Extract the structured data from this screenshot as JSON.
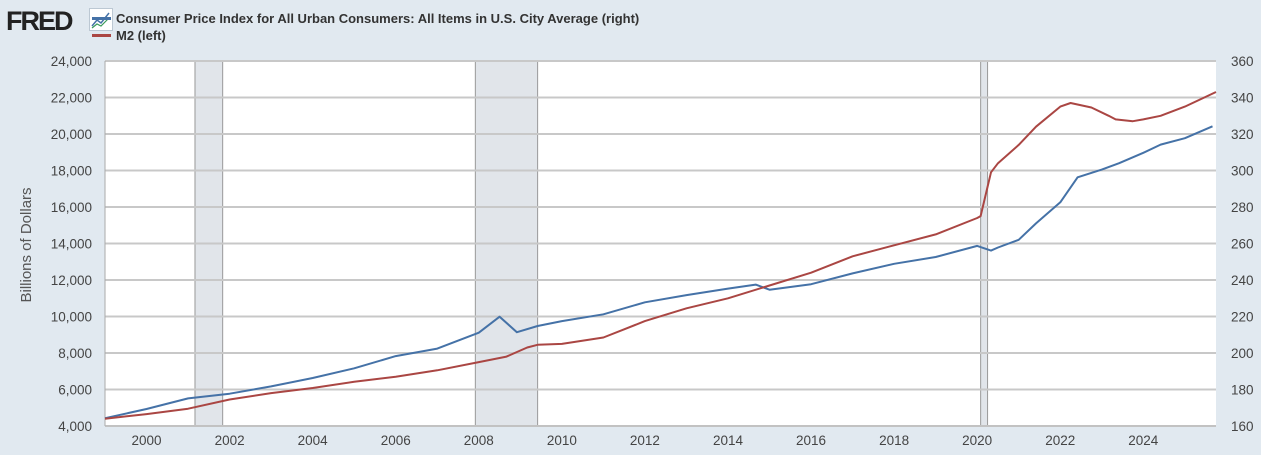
{
  "logo": "FRED",
  "chart_data": {
    "type": "line",
    "title": "",
    "ylabel_left": "Billions of Dollars",
    "ylim_left": [
      4000,
      24000
    ],
    "ylim_right": [
      160,
      360
    ],
    "xlim": [
      "1999-01",
      "2025-10"
    ],
    "yticks_left": [
      "4,000",
      "6,000",
      "8,000",
      "10,000",
      "12,000",
      "14,000",
      "16,000",
      "18,000",
      "20,000",
      "22,000",
      "24,000"
    ],
    "yticks_right": [
      "160",
      "180",
      "200",
      "220",
      "240",
      "260",
      "280",
      "300",
      "320",
      "340",
      "360"
    ],
    "xticks": [
      "2000",
      "2002",
      "2004",
      "2006",
      "2008",
      "2010",
      "2012",
      "2014",
      "2016",
      "2018",
      "2020",
      "2022",
      "2024"
    ],
    "grid": "horizontal",
    "legend_placement": "top-left",
    "recessions": [
      [
        "2001-03",
        "2001-11"
      ],
      [
        "2007-12",
        "2009-06"
      ],
      [
        "2020-02",
        "2020-04"
      ]
    ],
    "series": [
      {
        "name": "Consumer Price Index for All Urban Consumers: All Items in U.S. City Average (right)",
        "axis": "right",
        "color": "#4572a7",
        "x": [
          "1999-01",
          "2000-01",
          "2001-01",
          "2002-01",
          "2003-01",
          "2004-01",
          "2005-01",
          "2006-01",
          "2007-01",
          "2008-01",
          "2008-07",
          "2008-12",
          "2009-06",
          "2010-01",
          "2011-01",
          "2012-01",
          "2013-01",
          "2014-01",
          "2014-09",
          "2015-01",
          "2016-01",
          "2017-01",
          "2018-01",
          "2019-01",
          "2020-01",
          "2020-05",
          "2020-07",
          "2021-01",
          "2021-06",
          "2022-01",
          "2022-06",
          "2023-01",
          "2023-06",
          "2024-01",
          "2024-06",
          "2025-01",
          "2025-09"
        ],
        "values": [
          164.3,
          169.3,
          175.1,
          177.7,
          181.7,
          186.3,
          191.6,
          198.3,
          202.4,
          211.1,
          219.9,
          211.4,
          214.8,
          217.5,
          221.2,
          227.8,
          231.7,
          235.3,
          237.5,
          234.7,
          237.7,
          243.6,
          248.9,
          252.6,
          258.7,
          256.1,
          257.8,
          262.0,
          271.0,
          282.6,
          296.3,
          300.5,
          304.0,
          309.7,
          314.2,
          317.7,
          324.2
        ]
      },
      {
        "name": "M2 (left)",
        "axis": "left",
        "color": "#aa4643",
        "x": [
          "1999-01",
          "2000-01",
          "2001-01",
          "2002-01",
          "2003-01",
          "2004-01",
          "2005-01",
          "2006-01",
          "2007-01",
          "2008-01",
          "2008-09",
          "2009-03",
          "2009-06",
          "2010-01",
          "2011-01",
          "2011-07",
          "2012-01",
          "2013-01",
          "2014-01",
          "2015-01",
          "2016-01",
          "2017-01",
          "2018-01",
          "2019-01",
          "2020-01",
          "2020-02",
          "2020-05",
          "2020-07",
          "2021-01",
          "2021-06",
          "2022-01",
          "2022-04",
          "2022-10",
          "2023-03",
          "2023-05",
          "2023-10",
          "2024-01",
          "2024-06",
          "2025-01",
          "2025-10"
        ],
        "values": [
          4400,
          4650,
          4950,
          5450,
          5800,
          6080,
          6420,
          6700,
          7050,
          7500,
          7800,
          8300,
          8450,
          8500,
          8850,
          9300,
          9750,
          10450,
          11000,
          11700,
          12400,
          13300,
          13900,
          14500,
          15400,
          15500,
          17900,
          18400,
          19400,
          20400,
          21500,
          21700,
          21450,
          21000,
          20800,
          20700,
          20800,
          21000,
          21500,
          22300
        ]
      }
    ]
  }
}
